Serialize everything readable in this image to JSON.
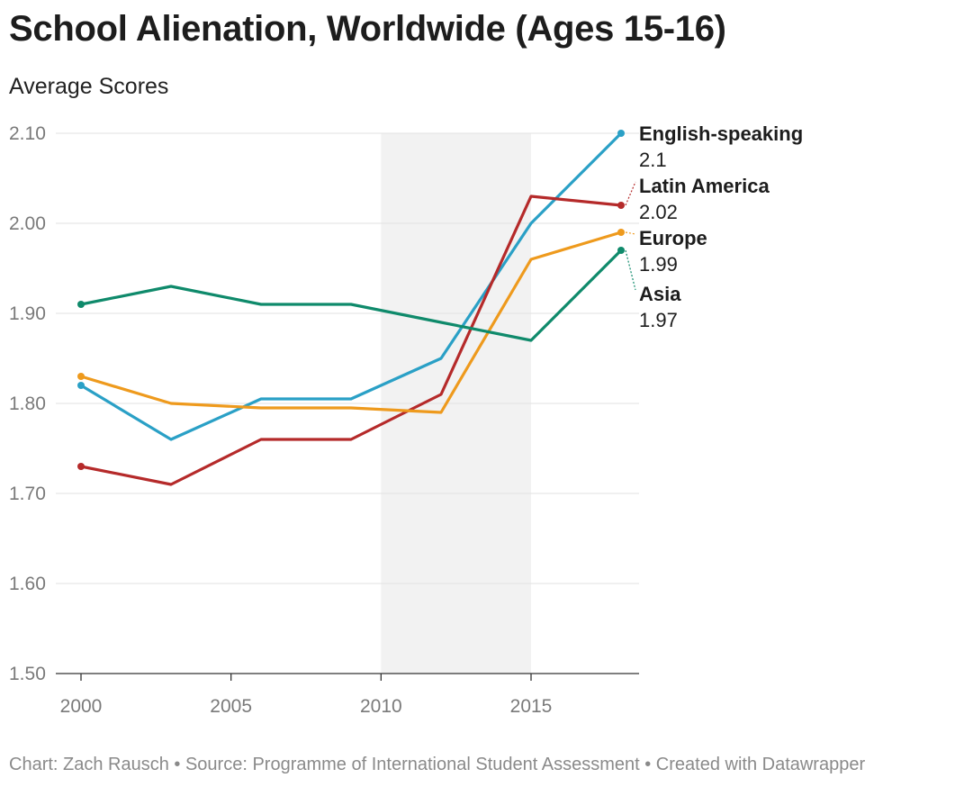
{
  "chart_data": {
    "type": "line",
    "title": "School Alienation, Worldwide (Ages 15-16)",
    "subtitle": "Average Scores",
    "xlabel": "",
    "ylabel": "",
    "x": [
      2000,
      2003,
      2006,
      2009,
      2012,
      2015,
      2018
    ],
    "xlim": [
      2000,
      2018
    ],
    "ylim": [
      1.5,
      2.1
    ],
    "x_ticks": [
      "2000",
      "2005",
      "2010",
      "2015"
    ],
    "x_tick_values": [
      2000,
      2005,
      2010,
      2015
    ],
    "y_ticks": [
      "1.50",
      "1.60",
      "1.70",
      "1.80",
      "1.90",
      "2.00",
      "2.10"
    ],
    "y_tick_values": [
      1.5,
      1.6,
      1.7,
      1.8,
      1.9,
      2.0,
      2.1
    ],
    "highlight_range": [
      2010,
      2015
    ],
    "series": [
      {
        "name": "English-speaking",
        "label_value": "2.1",
        "color": "#2aa0c6",
        "values": [
          1.82,
          1.76,
          1.805,
          1.805,
          1.85,
          2.0,
          2.1
        ]
      },
      {
        "name": "Latin America",
        "label_value": "2.02",
        "color": "#b52a2a",
        "values": [
          1.73,
          1.71,
          1.76,
          1.76,
          1.81,
          2.03,
          2.02
        ]
      },
      {
        "name": "Europe",
        "label_value": "1.99",
        "color": "#ee9a1d",
        "values": [
          1.83,
          1.8,
          1.795,
          1.795,
          1.79,
          1.96,
          1.99
        ]
      },
      {
        "name": "Asia",
        "label_value": "1.97",
        "color": "#0f8a6b",
        "values": [
          1.91,
          1.93,
          1.91,
          1.91,
          1.89,
          1.87,
          1.97
        ]
      }
    ]
  },
  "footer": "Chart: Zach Rausch • Source: Programme of International Student Assessment • Created with Datawrapper"
}
